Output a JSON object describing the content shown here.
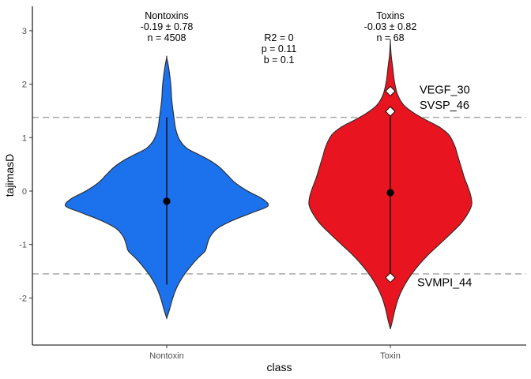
{
  "chart_data": {
    "type": "violin",
    "xlabel": "class",
    "ylabel": "tajimasD",
    "categories": [
      "Nontoxin",
      "Toxin"
    ],
    "ylim": [
      -2.85,
      3.5
    ],
    "yticks": [
      "-2",
      "-1",
      "0",
      "1",
      "2",
      "3"
    ],
    "grid": false,
    "reference_lines": [
      1.38,
      -1.55
    ],
    "series": [
      {
        "category": "Nontoxin",
        "fill": "#1c72ed",
        "mean": -0.19,
        "range_low": -1.75,
        "range_high": 1.38,
        "density": [
          [
            -2.38,
            0.0
          ],
          [
            -2.2,
            0.03
          ],
          [
            -2.0,
            0.06
          ],
          [
            -1.8,
            0.1
          ],
          [
            -1.6,
            0.16
          ],
          [
            -1.4,
            0.24
          ],
          [
            -1.25,
            0.31
          ],
          [
            -1.12,
            0.38
          ],
          [
            -1.0,
            0.4
          ],
          [
            -0.85,
            0.43
          ],
          [
            -0.7,
            0.5
          ],
          [
            -0.55,
            0.65
          ],
          [
            -0.4,
            0.85
          ],
          [
            -0.28,
            1.0
          ],
          [
            -0.15,
            0.95
          ],
          [
            0.0,
            0.8
          ],
          [
            0.15,
            0.68
          ],
          [
            0.3,
            0.6
          ],
          [
            0.45,
            0.52
          ],
          [
            0.58,
            0.42
          ],
          [
            0.7,
            0.3
          ],
          [
            0.8,
            0.2
          ],
          [
            0.95,
            0.13
          ],
          [
            1.15,
            0.09
          ],
          [
            1.4,
            0.07
          ],
          [
            1.7,
            0.05
          ],
          [
            2.0,
            0.04
          ],
          [
            2.3,
            0.02
          ],
          [
            2.5,
            0.0
          ]
        ],
        "annotation": [
          "Nontoxins",
          "-0.19 ± 0.78",
          "n = 4508"
        ]
      },
      {
        "category": "Toxin",
        "fill": "#e81521",
        "mean": -0.03,
        "range_low": -1.62,
        "range_high": 1.45,
        "density": [
          [
            -2.58,
            0.0
          ],
          [
            -2.4,
            0.03
          ],
          [
            -2.2,
            0.06
          ],
          [
            -2.0,
            0.1
          ],
          [
            -1.8,
            0.16
          ],
          [
            -1.6,
            0.24
          ],
          [
            -1.4,
            0.34
          ],
          [
            -1.2,
            0.46
          ],
          [
            -1.0,
            0.6
          ],
          [
            -0.8,
            0.74
          ],
          [
            -0.6,
            0.87
          ],
          [
            -0.4,
            0.96
          ],
          [
            -0.25,
            1.0
          ],
          [
            -0.1,
            0.99
          ],
          [
            0.05,
            0.96
          ],
          [
            0.25,
            0.91
          ],
          [
            0.45,
            0.87
          ],
          [
            0.65,
            0.83
          ],
          [
            0.85,
            0.79
          ],
          [
            1.05,
            0.72
          ],
          [
            1.2,
            0.6
          ],
          [
            1.32,
            0.45
          ],
          [
            1.45,
            0.3
          ],
          [
            1.6,
            0.17
          ],
          [
            1.8,
            0.09
          ],
          [
            2.05,
            0.05
          ],
          [
            2.3,
            0.03
          ],
          [
            2.55,
            0.01
          ],
          [
            2.8,
            0.0
          ]
        ],
        "highlight_points": [
          {
            "label": "VEGF_30",
            "y": 1.87
          },
          {
            "label": "SVSP_46",
            "y": 1.49
          },
          {
            "label": "SVMPI_44",
            "y": -1.62
          }
        ],
        "annotation": [
          "Toxins",
          "-0.03 ± 0.82",
          "n = 68"
        ]
      }
    ],
    "stats_annotation": [
      "R2 = 0",
      "p = 0.11",
      "b = 0.1"
    ]
  }
}
